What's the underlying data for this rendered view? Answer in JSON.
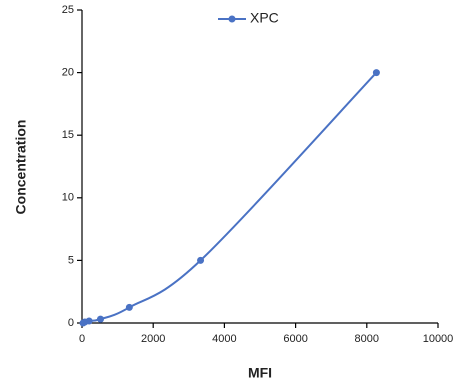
{
  "chart_data": {
    "type": "line",
    "x_label": "MFI",
    "y_label": "Concentration",
    "x": [
      30,
      80,
      200,
      520,
      1330,
      3330,
      8270
    ],
    "series": [
      {
        "name": "XPC",
        "color": "#4a72c4",
        "values": [
          0,
          0.08,
          0.16,
          0.31,
          1.25,
          5,
          20
        ]
      }
    ],
    "xlim": [
      0,
      10000
    ],
    "xticks": [
      0,
      2000,
      4000,
      6000,
      8000,
      10000
    ],
    "ylim": [
      0,
      25
    ],
    "yticks": [
      0,
      5,
      10,
      15,
      20,
      25
    ],
    "grid": false,
    "legend": "top"
  }
}
